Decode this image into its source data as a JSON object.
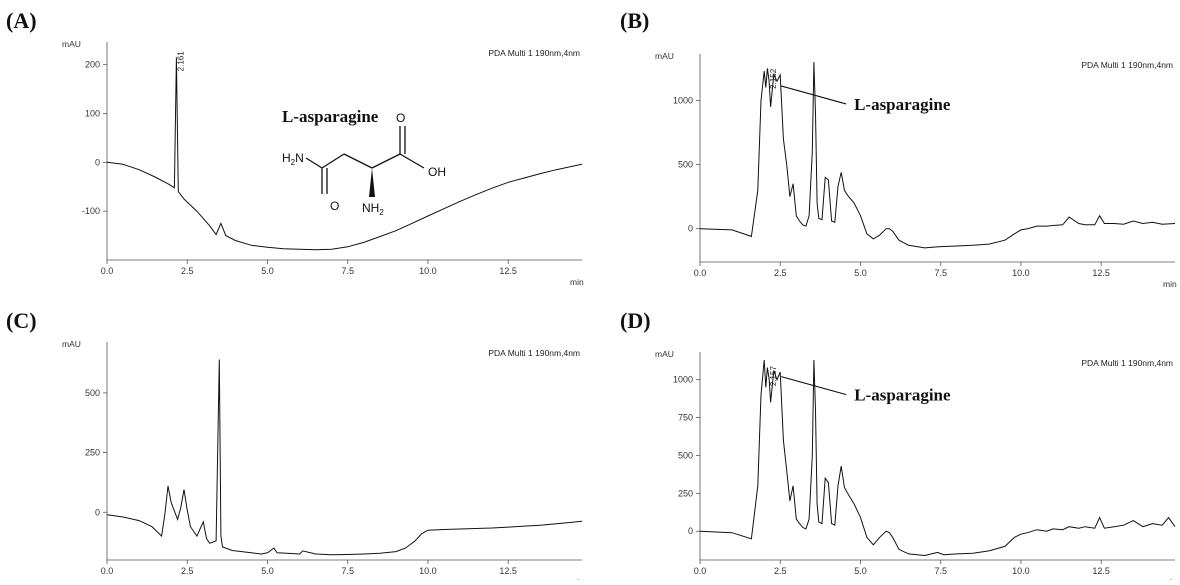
{
  "chart_data": [
    {
      "id": "A",
      "type": "line",
      "panel_label": "(A)",
      "detector": "PDA Multi 1 190nm,4nm",
      "ylabel": "mAU",
      "xlabel": "min",
      "xlim": [
        0,
        14.8
      ],
      "ylim": [
        -200,
        230
      ],
      "xticks": [
        0.0,
        2.5,
        5.0,
        7.5,
        10.0,
        12.5
      ],
      "yticks": [
        -100,
        0,
        100,
        200
      ],
      "peak_labels": [
        {
          "x": 2.161,
          "y": 215,
          "text": "2.161"
        }
      ],
      "compound_title": "L-asparagine",
      "structure_labels": {
        "amine": "H2N",
        "amino": "NH2",
        "hydroxyl": "OH",
        "oxygen": "O"
      },
      "x": [
        0.0,
        0.5,
        1.0,
        1.5,
        1.9,
        2.1,
        2.161,
        2.22,
        2.4,
        2.8,
        3.2,
        3.4,
        3.55,
        3.7,
        4.0,
        4.5,
        5.0,
        5.5,
        6.0,
        6.5,
        7.0,
        7.5,
        8.0,
        8.5,
        9.0,
        9.5,
        10.0,
        10.5,
        11.0,
        11.5,
        12.0,
        12.5,
        13.0,
        13.5,
        14.0,
        14.5,
        14.8
      ],
      "y": [
        0,
        -4,
        -15,
        -30,
        -44,
        -52,
        215,
        -60,
        -75,
        -100,
        -130,
        -148,
        -125,
        -150,
        -160,
        -170,
        -174,
        -177,
        -178,
        -179,
        -178,
        -173,
        -164,
        -152,
        -140,
        -125,
        -110,
        -95,
        -80,
        -66,
        -53,
        -41,
        -32,
        -23,
        -15,
        -8,
        -4
      ]
    },
    {
      "id": "B",
      "type": "line",
      "panel_label": "(B)",
      "detector": "PDA Multi 1 190nm,4nm",
      "ylabel": "mAU",
      "xlabel": "min",
      "xlim": [
        0,
        14.8
      ],
      "ylim": [
        -260,
        1300
      ],
      "xticks": [
        0.0,
        2.5,
        5.0,
        7.5,
        10.0,
        12.5
      ],
      "yticks": [
        0,
        500,
        1000
      ],
      "peak_labels": [
        {
          "x": 2.152,
          "y": 1200,
          "text": "2.152"
        }
      ],
      "callout": {
        "text": "L-asparagine",
        "x": 2.152,
        "y": 1160
      },
      "x": [
        0.0,
        1.0,
        1.6,
        1.8,
        1.9,
        2.0,
        2.05,
        2.1,
        2.152,
        2.2,
        2.3,
        2.4,
        2.5,
        2.6,
        2.7,
        2.8,
        2.9,
        3.0,
        3.1,
        3.2,
        3.3,
        3.4,
        3.5,
        3.55,
        3.6,
        3.65,
        3.7,
        3.8,
        3.9,
        4.0,
        4.1,
        4.2,
        4.3,
        4.4,
        4.5,
        4.6,
        4.8,
        5.0,
        5.2,
        5.4,
        5.6,
        5.8,
        5.9,
        6.0,
        6.2,
        6.5,
        7.0,
        7.5,
        8.0,
        8.5,
        9.0,
        9.5,
        9.8,
        10.0,
        10.2,
        10.5,
        10.8,
        11.0,
        11.3,
        11.5,
        11.8,
        12.0,
        12.3,
        12.45,
        12.6,
        12.9,
        13.2,
        13.5,
        13.8,
        14.1,
        14.4,
        14.8
      ],
      "y": [
        0,
        -10,
        -60,
        300,
        1000,
        1230,
        1100,
        1250,
        1150,
        950,
        1200,
        1150,
        1200,
        700,
        500,
        250,
        350,
        100,
        60,
        30,
        20,
        100,
        600,
        1300,
        900,
        200,
        80,
        70,
        400,
        380,
        60,
        50,
        330,
        440,
        300,
        260,
        200,
        100,
        -40,
        -80,
        -50,
        0,
        0,
        -20,
        -90,
        -130,
        -150,
        -140,
        -135,
        -130,
        -120,
        -90,
        -40,
        -10,
        0,
        20,
        20,
        25,
        30,
        90,
        40,
        30,
        30,
        100,
        40,
        40,
        35,
        60,
        40,
        50,
        35,
        40
      ]
    },
    {
      "id": "C",
      "type": "line",
      "panel_label": "(C)",
      "detector": "PDA Multi 1 190nm,4nm",
      "ylabel": "mAU",
      "xlabel": "min",
      "xlim": [
        0,
        14.8
      ],
      "ylim": [
        -200,
        680
      ],
      "xticks": [
        0.0,
        2.5,
        5.0,
        7.5,
        10.0,
        12.5
      ],
      "yticks": [
        0,
        250,
        500
      ],
      "x": [
        0.0,
        0.5,
        1.0,
        1.4,
        1.7,
        1.8,
        1.9,
        2.0,
        2.2,
        2.3,
        2.4,
        2.5,
        2.6,
        2.8,
        3.0,
        3.1,
        3.2,
        3.4,
        3.5,
        3.55,
        3.6,
        3.7,
        3.9,
        4.2,
        4.5,
        4.8,
        5.0,
        5.2,
        5.3,
        5.6,
        6.0,
        6.1,
        6.5,
        7.0,
        7.5,
        8.0,
        8.5,
        9.0,
        9.3,
        9.6,
        9.8,
        10.0,
        10.5,
        11.0,
        11.5,
        12.0,
        12.5,
        13.0,
        13.5,
        14.0,
        14.5,
        14.8
      ],
      "y": [
        -10,
        -20,
        -35,
        -60,
        -100,
        -10,
        110,
        40,
        -30,
        20,
        95,
        10,
        -60,
        -100,
        -40,
        -110,
        -130,
        -120,
        640,
        -100,
        -145,
        -150,
        -160,
        -165,
        -170,
        -175,
        -170,
        -150,
        -170,
        -172,
        -175,
        -162,
        -175,
        -178,
        -177,
        -175,
        -172,
        -165,
        -150,
        -120,
        -90,
        -75,
        -72,
        -70,
        -68,
        -66,
        -62,
        -58,
        -54,
        -48,
        -42,
        -38
      ]
    },
    {
      "id": "D",
      "type": "line",
      "panel_label": "(D)",
      "detector": "PDA Multi 1 190nm,4nm",
      "ylabel": "mAU",
      "xlabel": "min",
      "xlim": [
        0,
        14.8
      ],
      "ylim": [
        -190,
        1130
      ],
      "xticks": [
        0.0,
        2.5,
        5.0,
        7.5,
        10.0,
        12.5
      ],
      "yticks": [
        0,
        250,
        500,
        750,
        1000
      ],
      "peak_labels": [
        {
          "x": 2.157,
          "y": 1050,
          "text": "2.157"
        }
      ],
      "callout": {
        "text": "L-asparagine",
        "x": 2.157,
        "y": 1060
      },
      "x": [
        0.0,
        1.0,
        1.6,
        1.8,
        1.9,
        2.0,
        2.05,
        2.1,
        2.157,
        2.2,
        2.3,
        2.4,
        2.5,
        2.6,
        2.7,
        2.8,
        2.9,
        3.0,
        3.1,
        3.2,
        3.3,
        3.4,
        3.5,
        3.55,
        3.6,
        3.65,
        3.7,
        3.8,
        3.9,
        4.0,
        4.1,
        4.2,
        4.3,
        4.4,
        4.5,
        4.6,
        4.8,
        5.0,
        5.2,
        5.4,
        5.6,
        5.8,
        5.9,
        6.0,
        6.2,
        6.5,
        7.0,
        7.4,
        7.6,
        8.0,
        8.5,
        9.0,
        9.5,
        9.8,
        10.0,
        10.2,
        10.5,
        10.8,
        11.0,
        11.3,
        11.5,
        11.8,
        12.0,
        12.3,
        12.45,
        12.6,
        12.9,
        13.2,
        13.5,
        13.8,
        14.1,
        14.4,
        14.6,
        14.8
      ],
      "y": [
        0,
        -10,
        -50,
        300,
        900,
        1130,
        950,
        1080,
        1000,
        850,
        1060,
        1000,
        1050,
        600,
        400,
        200,
        300,
        80,
        50,
        25,
        15,
        80,
        500,
        1130,
        800,
        180,
        60,
        50,
        350,
        320,
        50,
        40,
        300,
        430,
        290,
        250,
        180,
        90,
        -40,
        -90,
        -40,
        0,
        -10,
        -40,
        -120,
        -150,
        -160,
        -140,
        -155,
        -150,
        -145,
        -130,
        -100,
        -40,
        -20,
        -10,
        10,
        0,
        15,
        10,
        30,
        20,
        30,
        20,
        90,
        20,
        30,
        40,
        70,
        30,
        50,
        40,
        90,
        30
      ]
    }
  ]
}
